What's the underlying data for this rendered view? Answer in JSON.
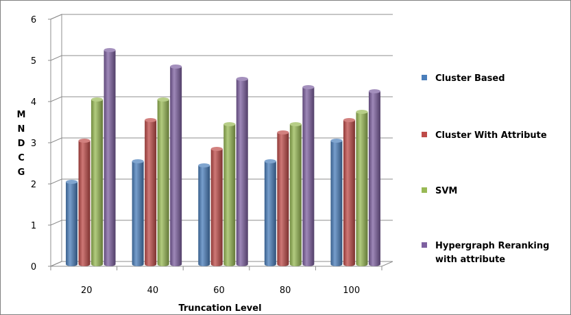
{
  "chart_data": {
    "type": "bar",
    "categories": [
      "20",
      "40",
      "60",
      "80",
      "100"
    ],
    "series": [
      {
        "name": "Cluster Based",
        "values": [
          2.0,
          2.5,
          2.4,
          2.5,
          3.0
        ],
        "color": "#4a7ebb"
      },
      {
        "name": "Cluster With Attribute",
        "values": [
          3.0,
          3.5,
          2.8,
          3.2,
          3.5
        ],
        "color": "#be4b48"
      },
      {
        "name": "SVM",
        "values": [
          4.0,
          4.0,
          3.4,
          3.4,
          3.7
        ],
        "color": "#98b954"
      },
      {
        "name": "Hypergraph Reranking with attribute",
        "legend_lines": [
          "Hypergraph Reranking",
          "with attribute"
        ],
        "values": [
          5.2,
          4.8,
          4.5,
          4.3,
          4.2
        ],
        "color": "#7d60a0"
      }
    ],
    "xlabel": "Truncation Level",
    "ylabel": "MNDCG",
    "ylabel_letters": [
      "M",
      "N",
      "D",
      "C",
      "G"
    ],
    "ylim": [
      0,
      6
    ],
    "yticks": [
      "0",
      "1",
      "2",
      "3",
      "4",
      "5",
      "6"
    ],
    "grid": true,
    "legend_position": "right",
    "style": "3d-cylinder"
  }
}
